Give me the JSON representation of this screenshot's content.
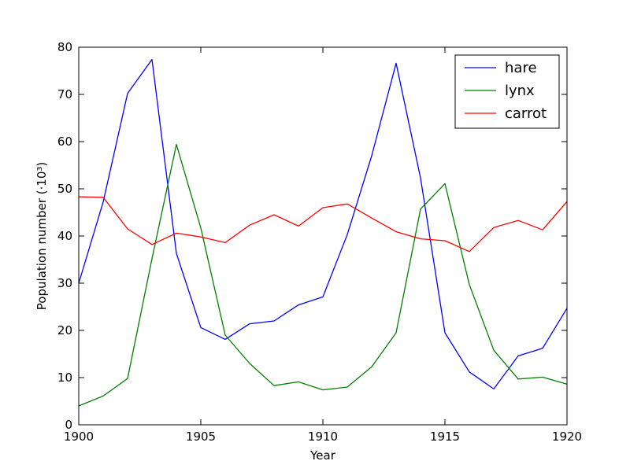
{
  "chart_data": {
    "type": "line",
    "title": "",
    "xlabel": "Year",
    "ylabel": "Population number (·10³)",
    "xlim": [
      1900,
      1920
    ],
    "ylim": [
      0,
      80
    ],
    "xticks": [
      1900,
      1905,
      1910,
      1915,
      1920
    ],
    "yticks": [
      0,
      10,
      20,
      30,
      40,
      50,
      60,
      70,
      80
    ],
    "grid": false,
    "legend_position": "top-right",
    "x": [
      1900,
      1901,
      1902,
      1903,
      1904,
      1905,
      1906,
      1907,
      1908,
      1909,
      1910,
      1911,
      1912,
      1913,
      1914,
      1915,
      1916,
      1917,
      1918,
      1919,
      1920
    ],
    "series": [
      {
        "name": "hare",
        "color": "#0000ff",
        "values": [
          30,
          47.2,
          70.2,
          77.4,
          36.3,
          20.6,
          18.1,
          21.4,
          22,
          25.4,
          27.1,
          40.3,
          57,
          76.6,
          52.3,
          19.5,
          11.2,
          7.6,
          14.6,
          16.2,
          24.7
        ]
      },
      {
        "name": "lynx",
        "color": "#008000",
        "values": [
          4,
          6.1,
          9.8,
          35.2,
          59.4,
          41.7,
          19,
          13,
          8.3,
          9.1,
          7.4,
          8,
          12.3,
          19.5,
          45.7,
          51.1,
          29.7,
          15.8,
          9.7,
          10.1,
          8.6
        ]
      },
      {
        "name": "carrot",
        "color": "#ff0000",
        "values": [
          48.3,
          48.2,
          41.5,
          38.2,
          40.6,
          39.8,
          38.6,
          42.3,
          44.5,
          42.1,
          46,
          46.8,
          43.8,
          40.9,
          39.4,
          39,
          36.7,
          41.8,
          43.3,
          41.3,
          47.3
        ]
      }
    ]
  }
}
